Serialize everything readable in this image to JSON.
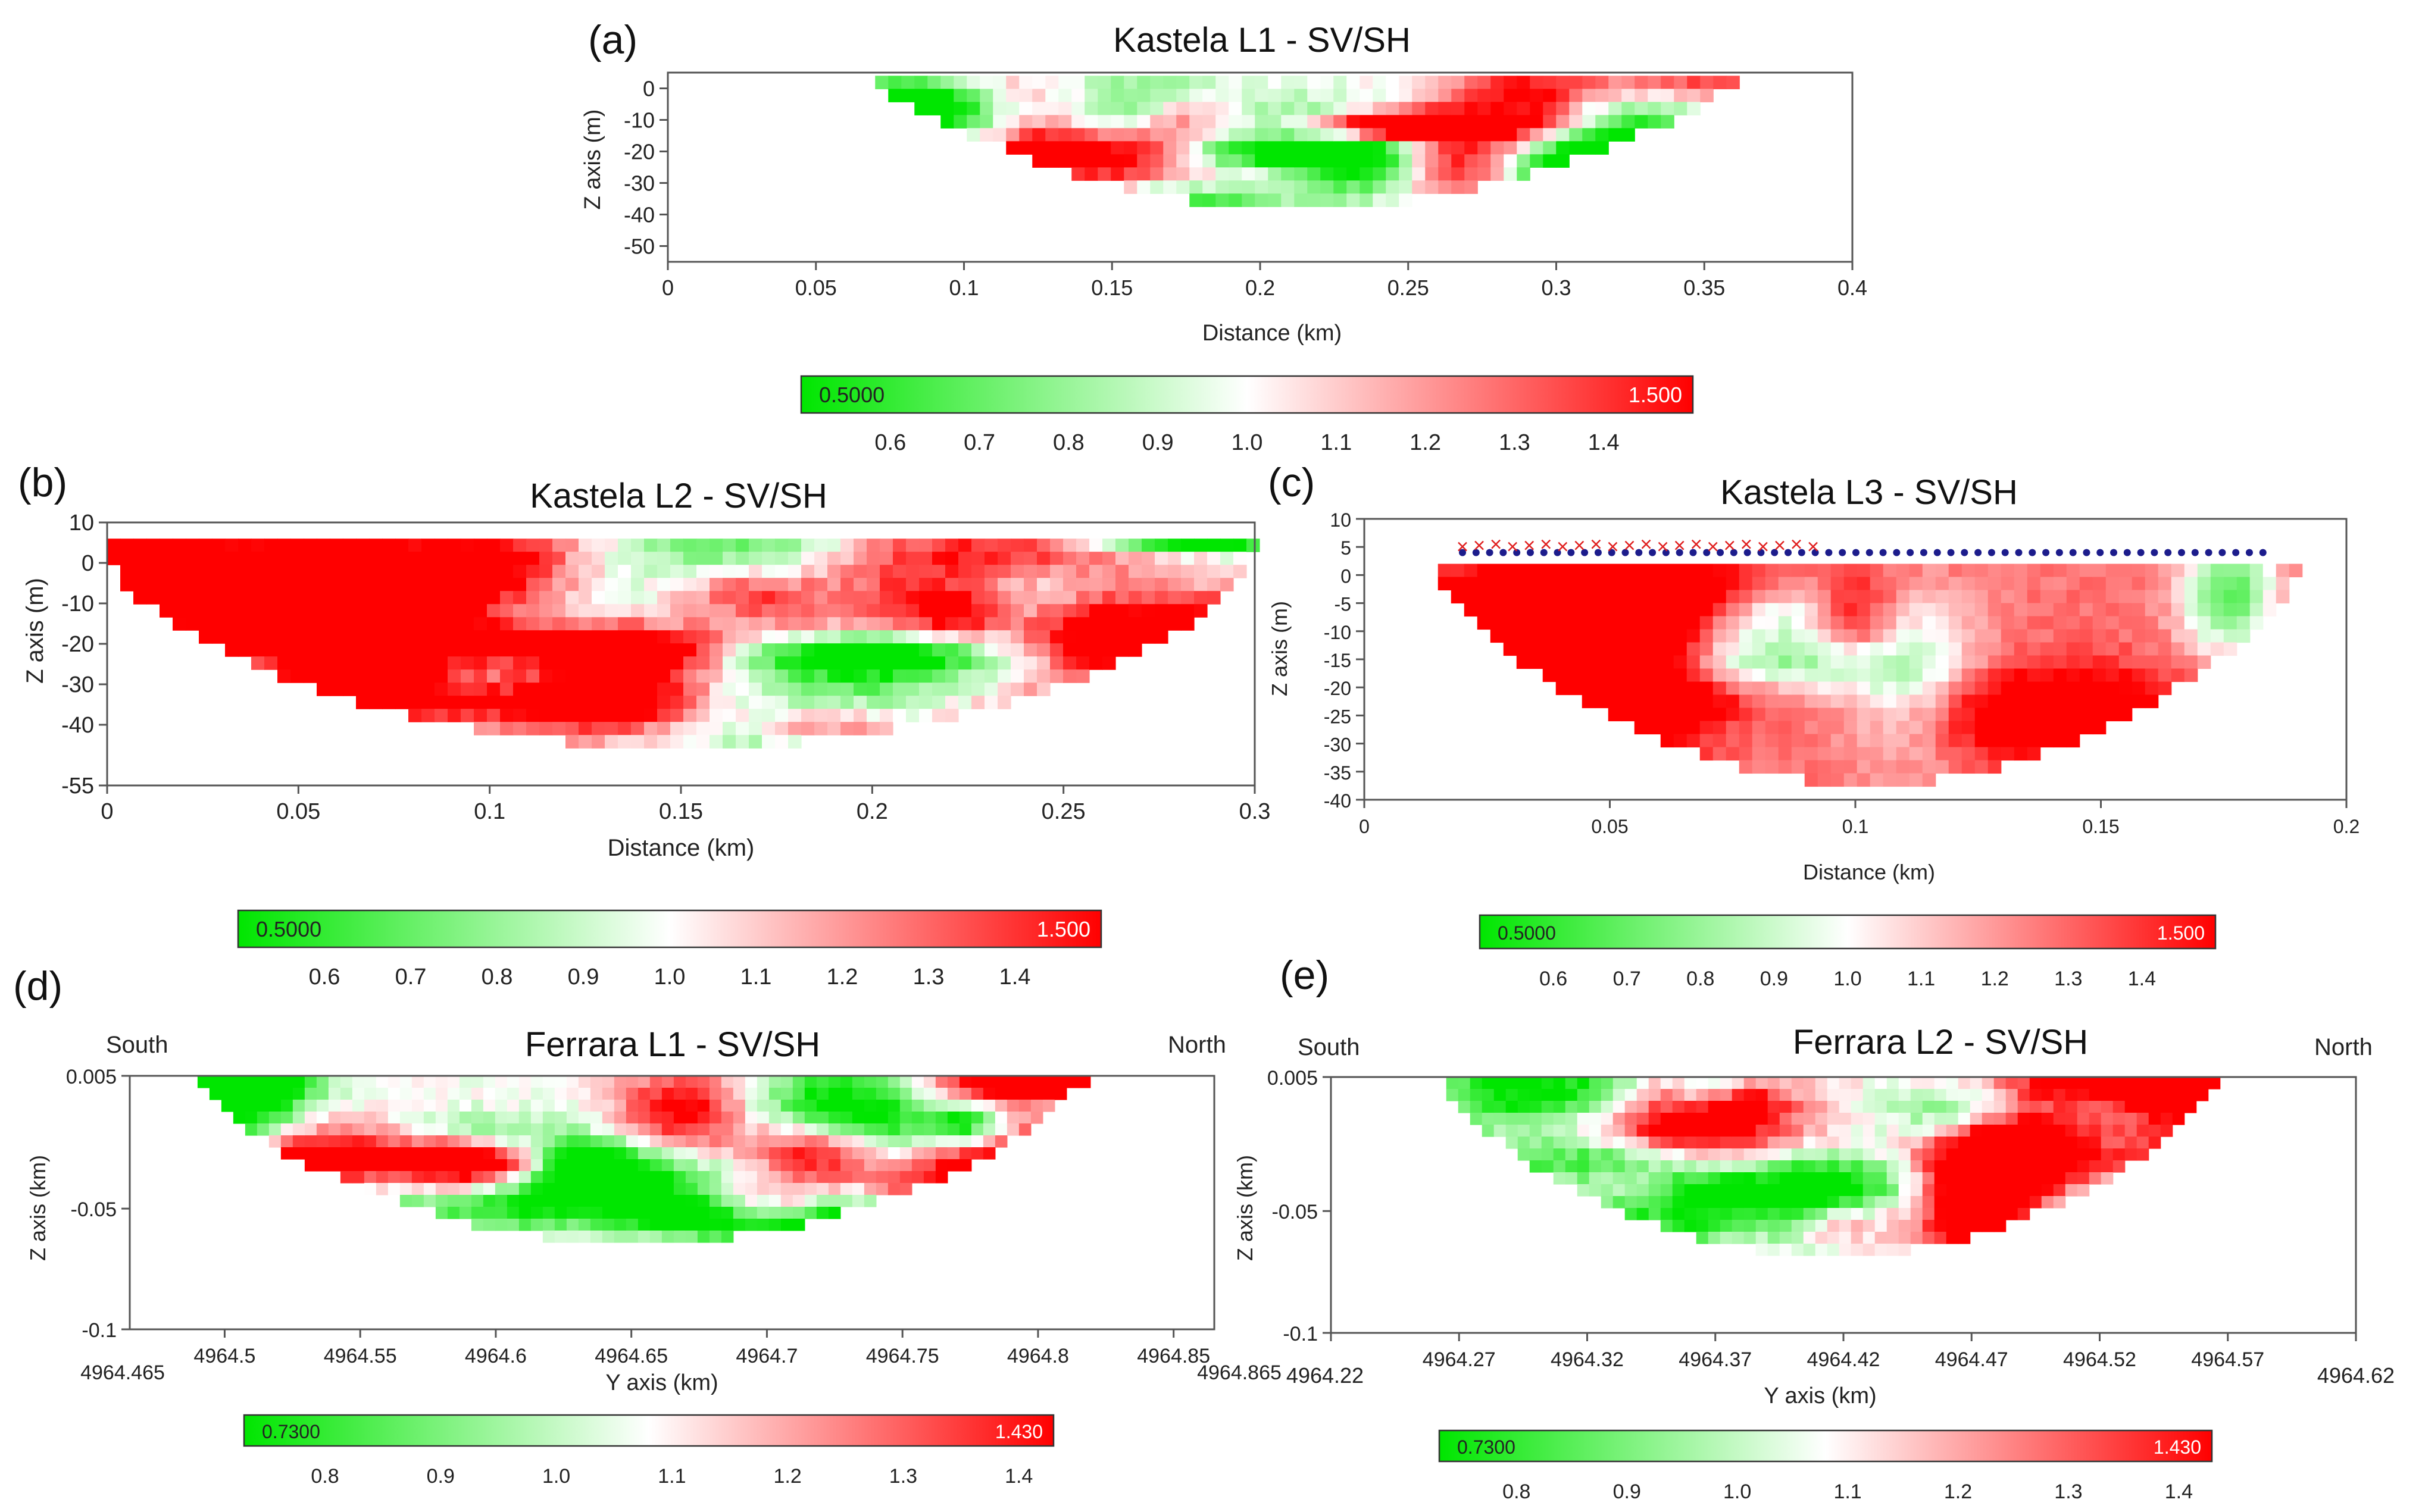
{
  "colors": {
    "low": "#00e600",
    "mid": "#ffffff",
    "high": "#ff0000",
    "axis": "#555555",
    "marker_x": "#e02020",
    "marker_dot": "#1c1c8c"
  },
  "chart_data": [
    {
      "type": "heatmap",
      "panel": "(a)",
      "title": "Kastela L1 - SV/SH",
      "xlabel": "Distance (km)",
      "ylabel": "Z axis (m)",
      "xlim": [
        0,
        0.4
      ],
      "ylim": [
        -55,
        5
      ],
      "x_ticks": [
        "0",
        "0.05",
        "0.1",
        "0.15",
        "0.2",
        "0.25",
        "0.3",
        "0.35",
        "0.4"
      ],
      "y_ticks": [
        "0",
        "-10",
        "-20",
        "-30",
        "-40",
        "-50"
      ],
      "y_tick_values": [
        0,
        -10,
        -20,
        -30,
        -40,
        -50
      ],
      "coverage": {
        "x_start": 0.07,
        "x_end": 0.36,
        "max_depth": -36
      },
      "colorbar": {
        "min_label": "0.5000",
        "max_label": "1.500",
        "min": 0.5,
        "max": 1.5,
        "ticks": [
          "0.6",
          "0.7",
          "0.8",
          "0.9",
          "1.0",
          "1.1",
          "1.2",
          "1.3",
          "1.4"
        ]
      }
    },
    {
      "type": "heatmap",
      "panel": "(b)",
      "title": "Kastela L2 - SV/SH",
      "xlabel": "Distance (km)",
      "ylabel": "Z axis (m)",
      "xlim": [
        0,
        0.3
      ],
      "ylim": [
        -55,
        10
      ],
      "x_ticks": [
        "0",
        "0.05",
        "0.1",
        "0.15",
        "0.2",
        "0.25",
        "0.3"
      ],
      "y_ticks": [
        "10",
        "0",
        "-10",
        "-20",
        "-30",
        "-40",
        "-55"
      ],
      "y_tick_values": [
        10,
        0,
        -10,
        -20,
        -30,
        -40,
        -55
      ],
      "coverage": {
        "x_start": 0.0,
        "x_end": 0.3,
        "max_depth": -44
      },
      "colorbar": {
        "min_label": "0.5000",
        "max_label": "1.500",
        "min": 0.5,
        "max": 1.5,
        "ticks": [
          "0.6",
          "0.7",
          "0.8",
          "0.9",
          "1.0",
          "1.1",
          "1.2",
          "1.3",
          "1.4"
        ]
      }
    },
    {
      "type": "heatmap",
      "panel": "(c)",
      "title": "Kastela L3 - SV/SH",
      "xlabel": "Distance (km)",
      "ylabel": "Z axis (m)",
      "xlim": [
        0,
        0.2
      ],
      "ylim": [
        -40,
        10
      ],
      "x_ticks": [
        "0",
        "0.05",
        "0.1",
        "0.15",
        "0.2"
      ],
      "y_ticks": [
        "10",
        "5",
        "0",
        "-5",
        "-10",
        "-15",
        "-20",
        "-25",
        "-30",
        "-35",
        "-40"
      ],
      "y_tick_values": [
        10,
        5,
        0,
        -5,
        -10,
        -15,
        -20,
        -25,
        -30,
        -35,
        -40
      ],
      "coverage": {
        "x_start": 0.015,
        "x_end": 0.19,
        "max_depth": -36
      },
      "markers": {
        "y": 4,
        "x_start": 0.02,
        "x_end": 0.183,
        "count": 60
      },
      "colorbar": {
        "min_label": "0.5000",
        "max_label": "1.500",
        "min": 0.5,
        "max": 1.5,
        "ticks": [
          "0.6",
          "0.7",
          "0.8",
          "0.9",
          "1.0",
          "1.1",
          "1.2",
          "1.3",
          "1.4"
        ]
      }
    },
    {
      "type": "heatmap",
      "panel": "(d)",
      "title": "Ferrara L1 - SV/SH",
      "xlabel": "Y axis (km)",
      "ylabel": "Z axis (km)",
      "left_label": "South",
      "right_label": "North",
      "xlim": [
        4964.465,
        4964.865
      ],
      "ylim": [
        -0.1,
        0.005
      ],
      "x_ticks": [
        "4964.5",
        "4964.55",
        "4964.6",
        "4964.65",
        "4964.7",
        "4964.75",
        "4964.8",
        "4964.85"
      ],
      "x_tick_values": [
        4964.5,
        4964.55,
        4964.6,
        4964.65,
        4964.7,
        4964.75,
        4964.8,
        4964.85
      ],
      "x_start_label": "4964.465",
      "x_end_label": "4964.865",
      "y_ticks": [
        "0.005",
        "-0.05",
        "-0.1"
      ],
      "y_tick_values": [
        0.005,
        -0.05,
        -0.1
      ],
      "coverage": {
        "x_start": 4964.49,
        "x_end": 4964.815,
        "max_depth": -0.062
      },
      "colorbar": {
        "min_label": "0.7300",
        "max_label": "1.430",
        "min": 0.73,
        "max": 1.43,
        "ticks": [
          "0.8",
          "0.9",
          "1.0",
          "1.1",
          "1.2",
          "1.3",
          "1.4"
        ]
      }
    },
    {
      "type": "heatmap",
      "panel": "(e)",
      "title": "Ferrara L2 - SV/SH",
      "xlabel": "Y axis (km)",
      "ylabel": "Z axis (km)",
      "left_label": "South",
      "right_label": "North",
      "xlim": [
        4964.22,
        4964.62
      ],
      "ylim": [
        -0.1,
        0.005
      ],
      "x_ticks": [
        "4964.22",
        "4964.27",
        "4964.32",
        "4964.37",
        "4964.42",
        "4964.47",
        "4964.52",
        "4964.57",
        "4964.62"
      ],
      "x_tick_values": [
        4964.22,
        4964.27,
        4964.32,
        4964.37,
        4964.42,
        4964.47,
        4964.52,
        4964.57,
        4964.62
      ],
      "y_ticks": [
        "0.005",
        "-0.05",
        "-0.1"
      ],
      "y_tick_values": [
        0.005,
        -0.05,
        -0.1
      ],
      "coverage": {
        "x_start": 4964.265,
        "x_end": 4964.565,
        "max_depth": -0.066
      },
      "colorbar": {
        "min_label": "0.7300",
        "max_label": "1.430",
        "min": 0.73,
        "max": 1.43,
        "ticks": [
          "0.8",
          "0.9",
          "1.0",
          "1.1",
          "1.2",
          "1.3",
          "1.4"
        ]
      }
    }
  ]
}
